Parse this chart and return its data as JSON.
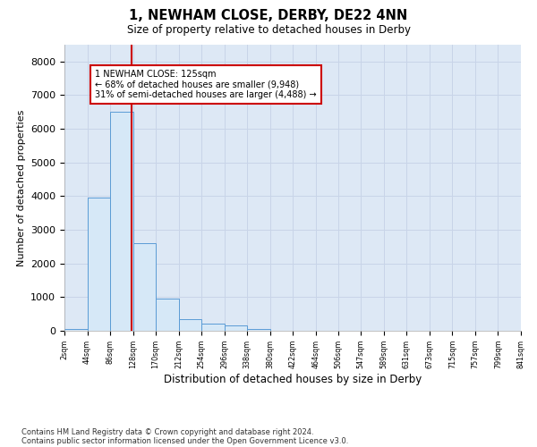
{
  "title1": "1, NEWHAM CLOSE, DERBY, DE22 4NN",
  "title2": "Size of property relative to detached houses in Derby",
  "xlabel": "Distribution of detached houses by size in Derby",
  "ylabel": "Number of detached properties",
  "footnote1": "Contains HM Land Registry data © Crown copyright and database right 2024.",
  "footnote2": "Contains public sector information licensed under the Open Government Licence v3.0.",
  "annotation_line1": "1 NEWHAM CLOSE: 125sqm",
  "annotation_line2": "← 68% of detached houses are smaller (9,948)",
  "annotation_line3": "31% of semi-detached houses are larger (4,488) →",
  "bin_edges": [
    2,
    44,
    86,
    128,
    170,
    212,
    254,
    296,
    338,
    380,
    422,
    464,
    506,
    547,
    589,
    631,
    673,
    715,
    757,
    799,
    841
  ],
  "bar_heights": [
    50,
    3950,
    6500,
    2600,
    950,
    350,
    200,
    150,
    50,
    0,
    0,
    0,
    0,
    0,
    0,
    0,
    0,
    0,
    0,
    0
  ],
  "bar_color": "#d6e8f7",
  "bar_edge_color": "#5b9bd5",
  "property_line_x": 125,
  "property_line_color": "#cc0000",
  "annotation_box_color": "#cc0000",
  "grid_color": "#c8d4e8",
  "bg_color": "#dde8f5",
  "ylim": [
    0,
    8500
  ],
  "yticks": [
    0,
    1000,
    2000,
    3000,
    4000,
    5000,
    6000,
    7000,
    8000
  ]
}
